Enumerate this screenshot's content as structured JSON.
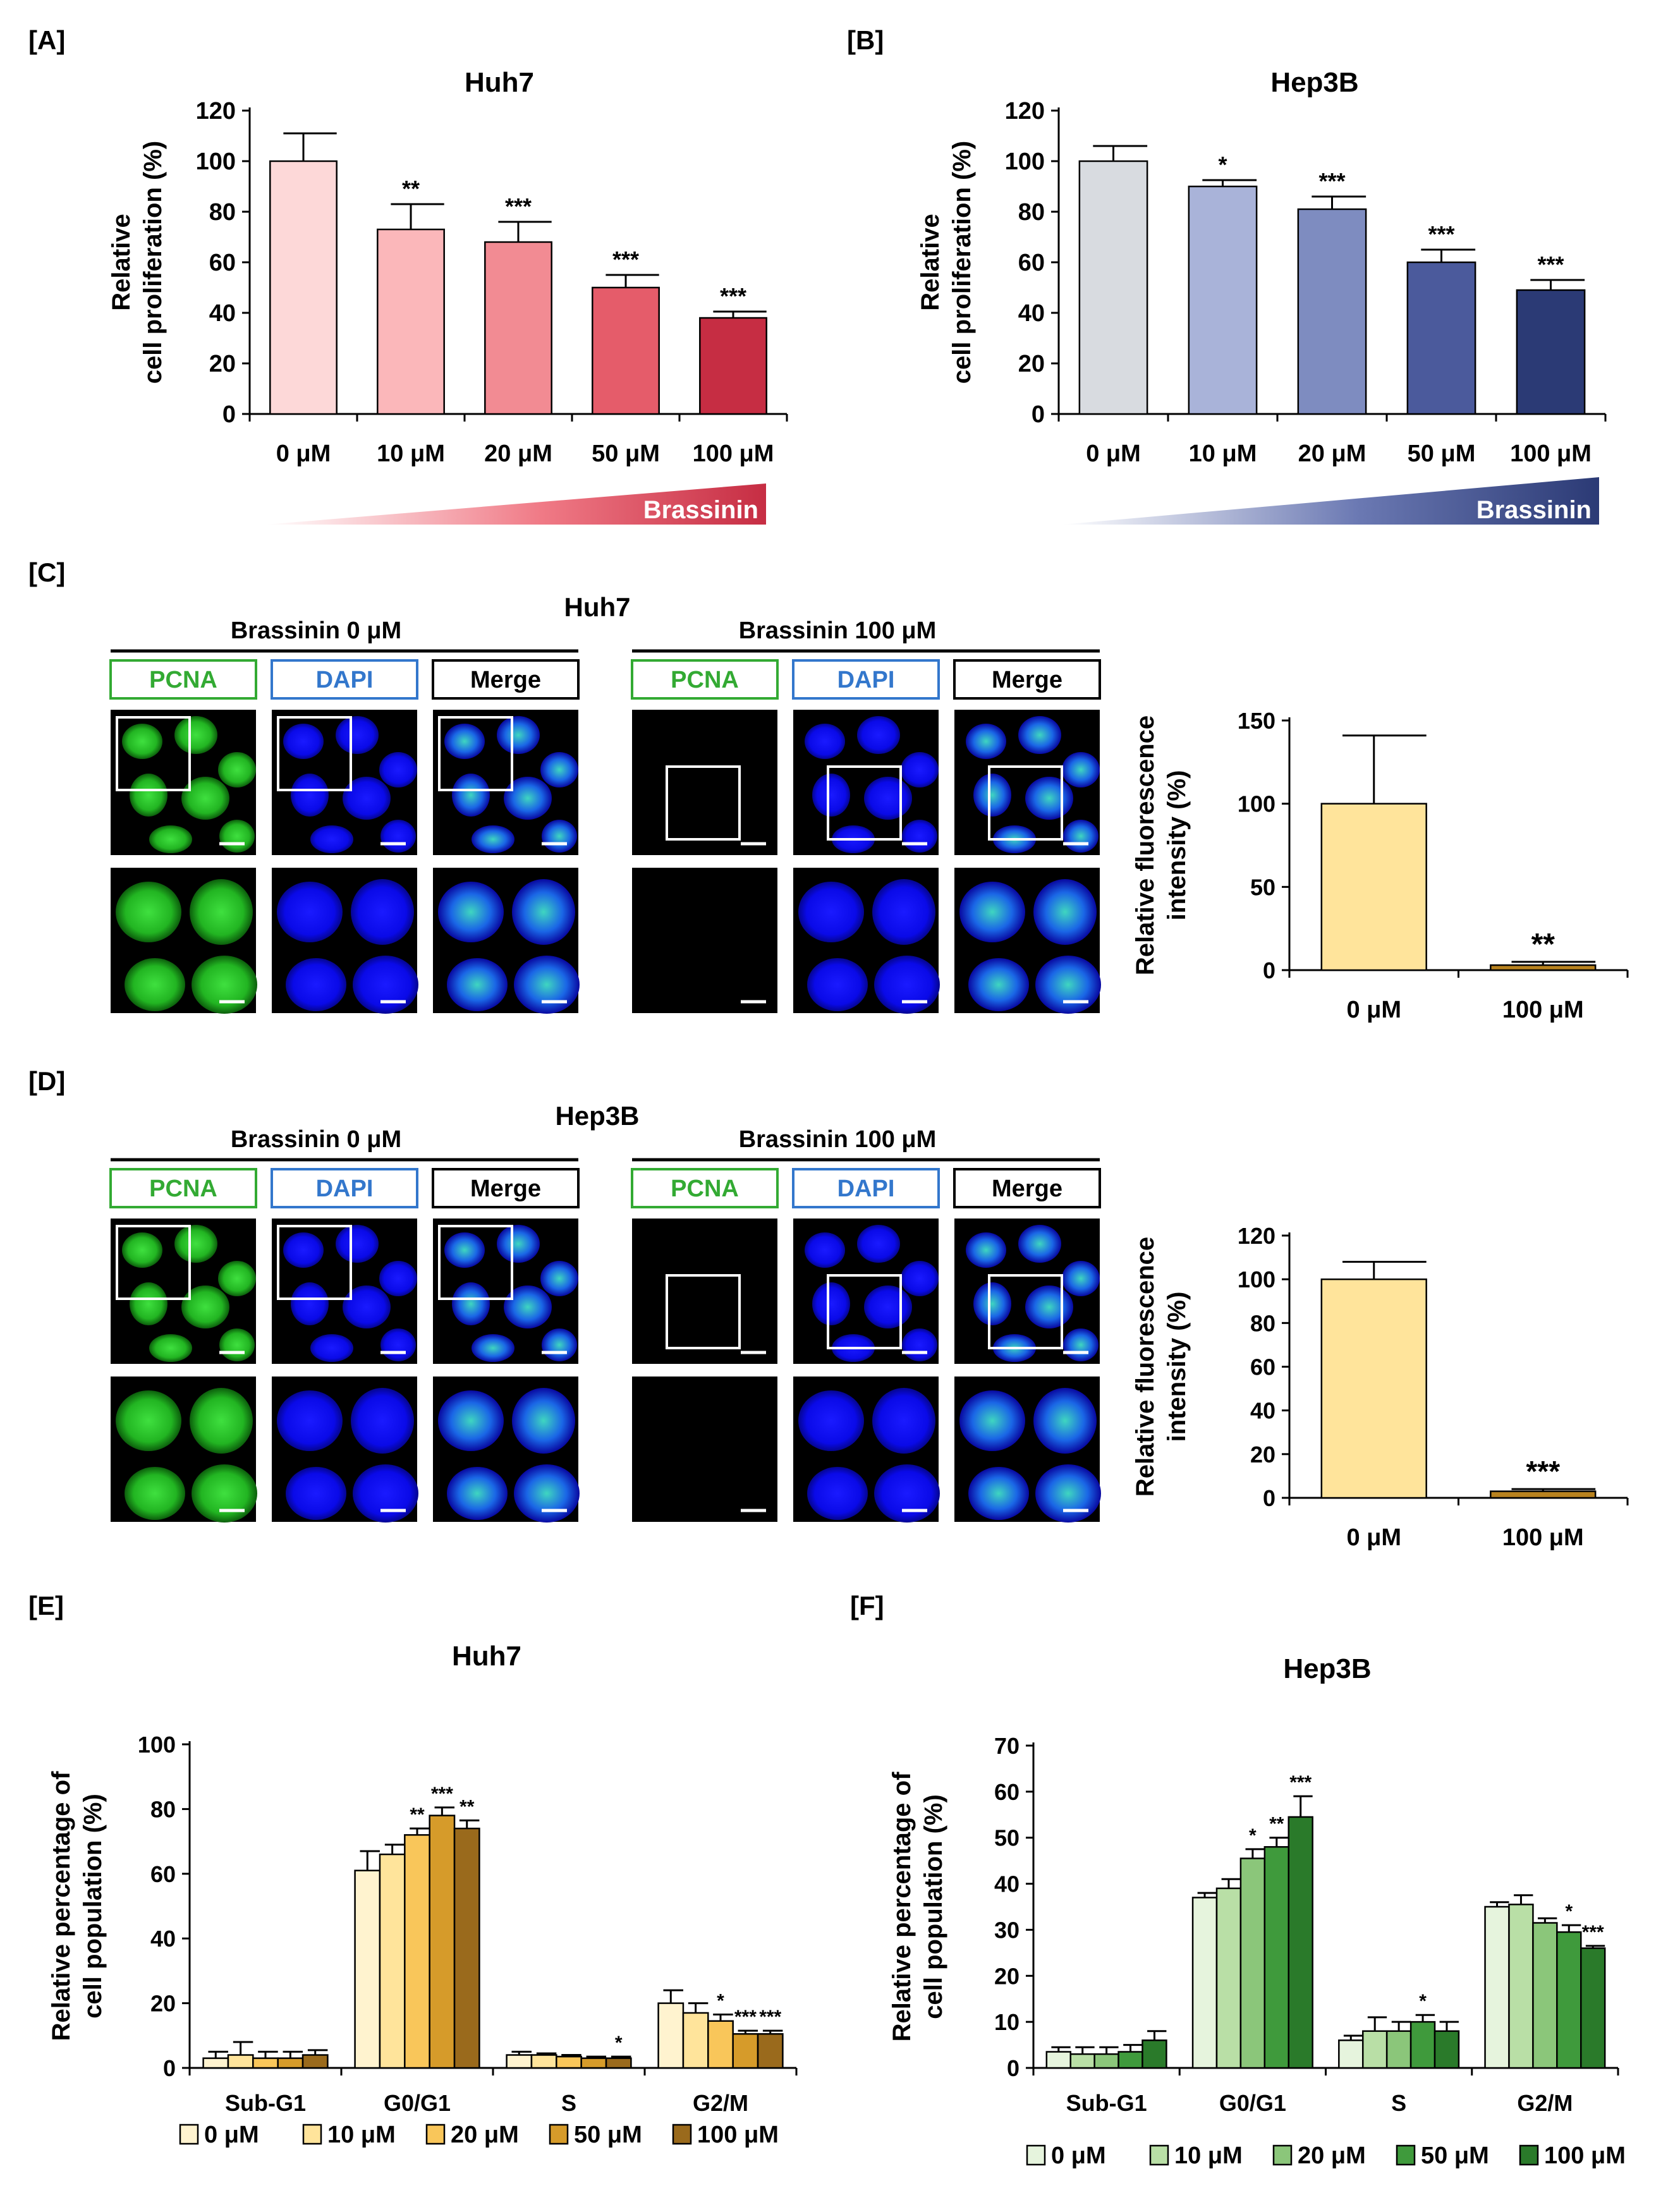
{
  "panel_letters": [
    "[A]",
    "[B]",
    "[C]",
    "[D]",
    "[E]",
    "[F]"
  ],
  "colors": {
    "huh7": [
      "#fdd8d8",
      "#fbb7ba",
      "#f28b93",
      "#e55c6a",
      "#c62d43"
    ],
    "hep3b": [
      "#d8dbe0",
      "#a9b3d9",
      "#7e8cc0",
      "#4b5a9c",
      "#2b3a75"
    ],
    "fluor": [
      "#ffe49b",
      "#b8821f"
    ],
    "huh7_cycle": [
      "#fff3cf",
      "#ffe49b",
      "#f9c65a",
      "#d69b2a",
      "#9a6a1c"
    ],
    "hep3b_cycle": [
      "#e6f4dd",
      "#b9dfa6",
      "#8bc67a",
      "#3f9a3c",
      "#2a7a2a"
    ],
    "pcna_label": "#33aa33",
    "dapi_label": "#3377cc",
    "merge_label": "#000000"
  },
  "gradient_label": "Brassinin",
  "micro": {
    "c_title": "Huh7",
    "d_title": "Hep3B",
    "group_0": "Brassinin 0 μM",
    "group_100": "Brassinin 100 μM",
    "channels": [
      "PCNA",
      "DAPI",
      "Merge"
    ]
  },
  "chart_data": [
    {
      "id": "A",
      "type": "bar",
      "title": "Huh7",
      "categories": [
        "0 μM",
        "10 μM",
        "20 μM",
        "50 μM",
        "100 μM"
      ],
      "values": [
        100,
        73,
        68,
        50,
        38
      ],
      "errors": [
        11,
        10,
        8,
        5,
        2.5
      ],
      "significance": [
        "",
        "**",
        "***",
        "***",
        "***"
      ],
      "ylabel": [
        "Relative",
        "cell proliferation (%)"
      ],
      "ylim": [
        0,
        120
      ],
      "yticks": [
        0,
        20,
        40,
        60,
        80,
        100,
        120
      ]
    },
    {
      "id": "B",
      "type": "bar",
      "title": "Hep3B",
      "categories": [
        "0 μM",
        "10 μM",
        "20 μM",
        "50 μM",
        "100 μM"
      ],
      "values": [
        100,
        90,
        81,
        60,
        49
      ],
      "errors": [
        6,
        2.5,
        5,
        5,
        4
      ],
      "significance": [
        "",
        "*",
        "***",
        "***",
        "***"
      ],
      "ylabel": [
        "Relative",
        "cell proliferation (%)"
      ],
      "ylim": [
        0,
        120
      ],
      "yticks": [
        0,
        20,
        40,
        60,
        80,
        100,
        120
      ]
    },
    {
      "id": "C",
      "type": "bar",
      "title": "",
      "categories": [
        "0 μM",
        "100 μM"
      ],
      "values": [
        100,
        3
      ],
      "errors": [
        41,
        2
      ],
      "significance": [
        "",
        "**"
      ],
      "ylabel": [
        "Relative fluorescence",
        "intensity (%)"
      ],
      "ylim": [
        0,
        150
      ],
      "yticks": [
        0,
        50,
        100,
        150
      ]
    },
    {
      "id": "D",
      "type": "bar",
      "title": "",
      "categories": [
        "0 μM",
        "100 μM"
      ],
      "values": [
        100,
        3
      ],
      "errors": [
        8,
        1
      ],
      "significance": [
        "",
        "***"
      ],
      "ylabel": [
        "Relative fluorescence",
        "intensity (%)"
      ],
      "ylim": [
        0,
        120
      ],
      "yticks": [
        0,
        20,
        40,
        60,
        80,
        100,
        120
      ]
    },
    {
      "id": "E",
      "type": "bar",
      "title": "Huh7",
      "categories": [
        "Sub-G1",
        "G0/G1",
        "S",
        "G2/M"
      ],
      "legend": [
        "0 μM",
        "10 μM",
        "20 μM",
        "50 μM",
        "100 μM"
      ],
      "series": [
        {
          "name": "0 μM",
          "values": [
            3,
            61,
            4,
            20
          ],
          "errors": [
            2,
            6,
            1,
            4
          ]
        },
        {
          "name": "10 μM",
          "values": [
            4,
            66,
            4,
            17
          ],
          "errors": [
            4,
            3,
            0.5,
            3
          ]
        },
        {
          "name": "20 μM",
          "values": [
            3,
            72,
            3.5,
            14.5
          ],
          "errors": [
            2,
            2,
            0.5,
            2
          ]
        },
        {
          "name": "50 μM",
          "values": [
            3,
            78,
            3,
            10.5
          ],
          "errors": [
            2,
            2.5,
            0.5,
            1
          ]
        },
        {
          "name": "100 μM",
          "values": [
            4,
            74,
            3,
            10.5
          ],
          "errors": [
            1.5,
            2.5,
            0.5,
            1
          ]
        }
      ],
      "significance": [
        [
          "",
          "",
          "",
          "",
          ""
        ],
        [
          "",
          "",
          "**",
          "***",
          "**"
        ],
        [
          "",
          "",
          "",
          "",
          "*"
        ],
        [
          "",
          "",
          "*",
          "***",
          "***"
        ]
      ],
      "ylabel": [
        "Relative percentage of",
        "cell population (%)"
      ],
      "ylim": [
        0,
        100
      ],
      "yticks": [
        0,
        20,
        40,
        60,
        80,
        100
      ]
    },
    {
      "id": "F",
      "type": "bar",
      "title": "Hep3B",
      "categories": [
        "Sub-G1",
        "G0/G1",
        "S",
        "G2/M"
      ],
      "legend": [
        "0 μM",
        "10 μM",
        "20 μM",
        "50 μM",
        "100 μM"
      ],
      "series": [
        {
          "name": "0 μM",
          "values": [
            3.5,
            37,
            6,
            35
          ],
          "errors": [
            1,
            1,
            1,
            1
          ]
        },
        {
          "name": "10 μM",
          "values": [
            3,
            39,
            8,
            35.5
          ],
          "errors": [
            1.5,
            2,
            3,
            2
          ]
        },
        {
          "name": "20 μM",
          "values": [
            3,
            45.5,
            8,
            31.5
          ],
          "errors": [
            1.5,
            2,
            2,
            1
          ]
        },
        {
          "name": "50 μM",
          "values": [
            3.5,
            48,
            10,
            29.5
          ],
          "errors": [
            1.5,
            2,
            1.5,
            1.5
          ]
        },
        {
          "name": "100 μM",
          "values": [
            6,
            54.5,
            8,
            26
          ],
          "errors": [
            2,
            4.5,
            2,
            0.5
          ]
        }
      ],
      "significance": [
        [
          "",
          "",
          "",
          "",
          ""
        ],
        [
          "",
          "",
          "*",
          "**",
          "***"
        ],
        [
          "",
          "",
          "",
          "*",
          ""
        ],
        [
          "",
          "",
          "",
          "*",
          "***"
        ]
      ],
      "ylabel": [
        "Relative percentage of",
        "cell population (%)"
      ],
      "ylim": [
        0,
        70
      ],
      "yticks": [
        0,
        10,
        20,
        30,
        40,
        50,
        60,
        70
      ]
    }
  ]
}
